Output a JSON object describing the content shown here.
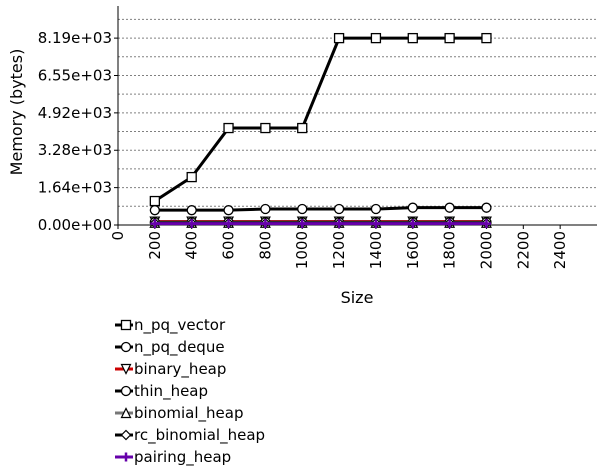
{
  "chart_data": {
    "type": "line",
    "title": "",
    "xlabel": "Size",
    "ylabel": "Memory (bytes)",
    "xlim": [
      0,
      2600
    ],
    "ylim": [
      0,
      9600
    ],
    "x_ticks": [
      0,
      200,
      400,
      600,
      800,
      1000,
      1200,
      1400,
      1600,
      1800,
      2000,
      2200,
      2400
    ],
    "x_tick_labels": [
      "0",
      "200",
      "400",
      "600",
      "800",
      "1000",
      "1200",
      "1400",
      "1600",
      "1800",
      "2000",
      "2200",
      "2400"
    ],
    "y_ticks": [
      0,
      1638.4,
      3276.8,
      4915.2,
      6553.6,
      8192
    ],
    "y_tick_labels": [
      "0.00e+00",
      "1.64e+03",
      "3.28e+03",
      "4.92e+03",
      "6.55e+03",
      "8.19e+03"
    ],
    "grid": true,
    "legend_position": "bottom",
    "x": [
      200,
      400,
      600,
      800,
      1000,
      1200,
      1400,
      1600,
      1800,
      2000
    ],
    "series": [
      {
        "name": "n_pq_vector",
        "color": "#000000",
        "marker": "square",
        "values": [
          1050,
          2100,
          4250,
          4250,
          4250,
          8192,
          8192,
          8192,
          8192,
          8192
        ]
      },
      {
        "name": "n_pq_deque",
        "color": "#000000",
        "marker": "circle",
        "values": [
          650,
          650,
          650,
          700,
          700,
          700,
          700,
          760,
          760,
          760
        ]
      },
      {
        "name": "binary_heap",
        "color": "#cc0000",
        "marker": "triangle-down",
        "values": [
          150,
          150,
          150,
          150,
          150,
          150,
          150,
          150,
          150,
          150
        ]
      },
      {
        "name": "thin_heap",
        "color": "#000000",
        "marker": "circle",
        "values": [
          120,
          120,
          120,
          120,
          120,
          120,
          120,
          120,
          120,
          120
        ]
      },
      {
        "name": "binomial_heap",
        "color": "#777777",
        "marker": "triangle-up",
        "values": [
          100,
          100,
          100,
          100,
          100,
          100,
          100,
          100,
          100,
          100
        ]
      },
      {
        "name": "rc_binomial_heap",
        "color": "#000000",
        "marker": "diamond",
        "values": [
          80,
          80,
          80,
          80,
          80,
          80,
          80,
          80,
          80,
          80
        ]
      },
      {
        "name": "pairing_heap",
        "color": "#6600aa",
        "marker": "plus",
        "values": [
          60,
          60,
          60,
          60,
          60,
          60,
          60,
          60,
          60,
          60
        ]
      }
    ]
  }
}
